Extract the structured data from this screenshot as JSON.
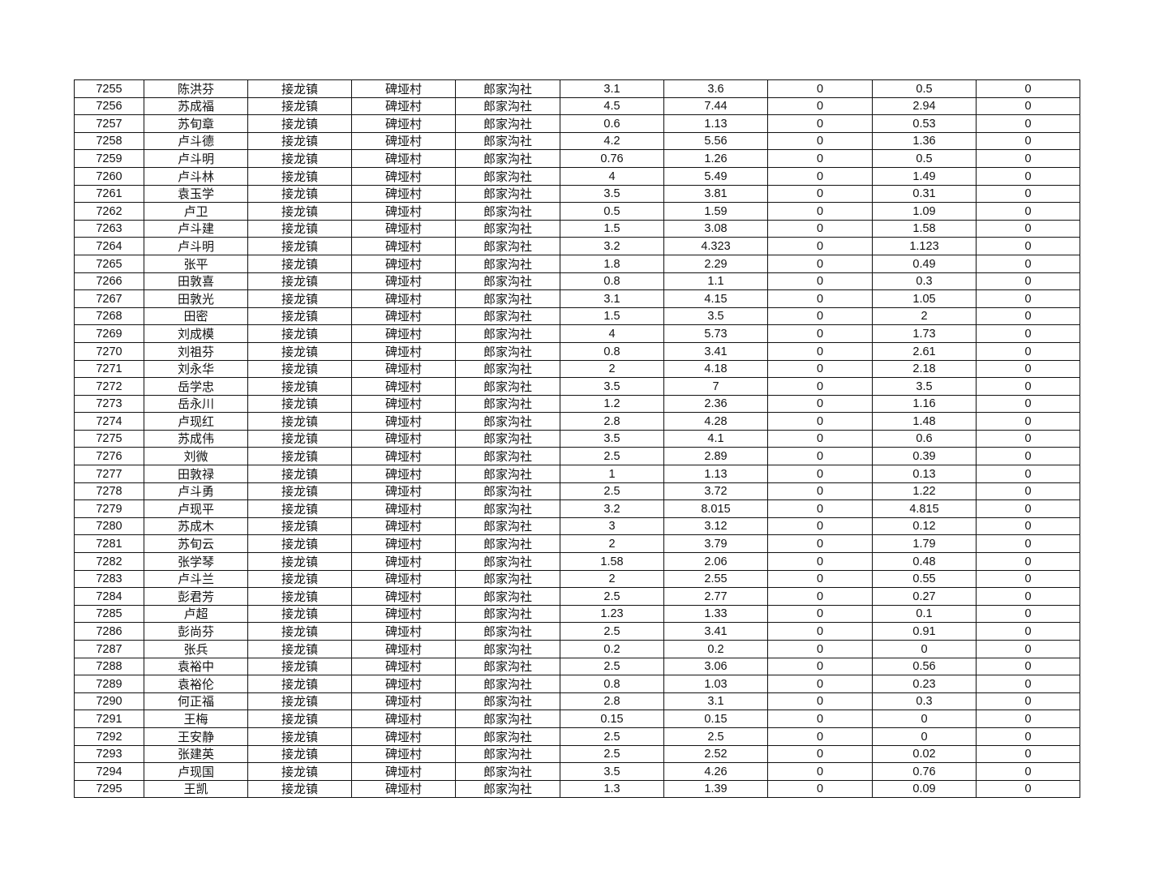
{
  "table": {
    "rows": [
      [
        "7255",
        "陈洪芬",
        "接龙镇",
        "碑垭村",
        "郎家沟社",
        "3.1",
        "3.6",
        "0",
        "0.5",
        "0"
      ],
      [
        "7256",
        "苏成福",
        "接龙镇",
        "碑垭村",
        "郎家沟社",
        "4.5",
        "7.44",
        "0",
        "2.94",
        "0"
      ],
      [
        "7257",
        "苏旬章",
        "接龙镇",
        "碑垭村",
        "郎家沟社",
        "0.6",
        "1.13",
        "0",
        "0.53",
        "0"
      ],
      [
        "7258",
        "卢斗德",
        "接龙镇",
        "碑垭村",
        "郎家沟社",
        "4.2",
        "5.56",
        "0",
        "1.36",
        "0"
      ],
      [
        "7259",
        "卢斗明",
        "接龙镇",
        "碑垭村",
        "郎家沟社",
        "0.76",
        "1.26",
        "0",
        "0.5",
        "0"
      ],
      [
        "7260",
        "卢斗林",
        "接龙镇",
        "碑垭村",
        "郎家沟社",
        "4",
        "5.49",
        "0",
        "1.49",
        "0"
      ],
      [
        "7261",
        "袁玉学",
        "接龙镇",
        "碑垭村",
        "郎家沟社",
        "3.5",
        "3.81",
        "0",
        "0.31",
        "0"
      ],
      [
        "7262",
        "卢卫",
        "接龙镇",
        "碑垭村",
        "郎家沟社",
        "0.5",
        "1.59",
        "0",
        "1.09",
        "0"
      ],
      [
        "7263",
        "卢斗建",
        "接龙镇",
        "碑垭村",
        "郎家沟社",
        "1.5",
        "3.08",
        "0",
        "1.58",
        "0"
      ],
      [
        "7264",
        "卢斗明",
        "接龙镇",
        "碑垭村",
        "郎家沟社",
        "3.2",
        "4.323",
        "0",
        "1.123",
        "0"
      ],
      [
        "7265",
        "张平",
        "接龙镇",
        "碑垭村",
        "郎家沟社",
        "1.8",
        "2.29",
        "0",
        "0.49",
        "0"
      ],
      [
        "7266",
        "田敦喜",
        "接龙镇",
        "碑垭村",
        "郎家沟社",
        "0.8",
        "1.1",
        "0",
        "0.3",
        "0"
      ],
      [
        "7267",
        "田敦光",
        "接龙镇",
        "碑垭村",
        "郎家沟社",
        "3.1",
        "4.15",
        "0",
        "1.05",
        "0"
      ],
      [
        "7268",
        "田密",
        "接龙镇",
        "碑垭村",
        "郎家沟社",
        "1.5",
        "3.5",
        "0",
        "2",
        "0"
      ],
      [
        "7269",
        "刘成模",
        "接龙镇",
        "碑垭村",
        "郎家沟社",
        "4",
        "5.73",
        "0",
        "1.73",
        "0"
      ],
      [
        "7270",
        "刘祖芬",
        "接龙镇",
        "碑垭村",
        "郎家沟社",
        "0.8",
        "3.41",
        "0",
        "2.61",
        "0"
      ],
      [
        "7271",
        "刘永华",
        "接龙镇",
        "碑垭村",
        "郎家沟社",
        "2",
        "4.18",
        "0",
        "2.18",
        "0"
      ],
      [
        "7272",
        "岳学忠",
        "接龙镇",
        "碑垭村",
        "郎家沟社",
        "3.5",
        "7",
        "0",
        "3.5",
        "0"
      ],
      [
        "7273",
        "岳永川",
        "接龙镇",
        "碑垭村",
        "郎家沟社",
        "1.2",
        "2.36",
        "0",
        "1.16",
        "0"
      ],
      [
        "7274",
        "卢现红",
        "接龙镇",
        "碑垭村",
        "郎家沟社",
        "2.8",
        "4.28",
        "0",
        "1.48",
        "0"
      ],
      [
        "7275",
        "苏成伟",
        "接龙镇",
        "碑垭村",
        "郎家沟社",
        "3.5",
        "4.1",
        "0",
        "0.6",
        "0"
      ],
      [
        "7276",
        "刘微",
        "接龙镇",
        "碑垭村",
        "郎家沟社",
        "2.5",
        "2.89",
        "0",
        "0.39",
        "0"
      ],
      [
        "7277",
        "田敦禄",
        "接龙镇",
        "碑垭村",
        "郎家沟社",
        "1",
        "1.13",
        "0",
        "0.13",
        "0"
      ],
      [
        "7278",
        "卢斗勇",
        "接龙镇",
        "碑垭村",
        "郎家沟社",
        "2.5",
        "3.72",
        "0",
        "1.22",
        "0"
      ],
      [
        "7279",
        "卢现平",
        "接龙镇",
        "碑垭村",
        "郎家沟社",
        "3.2",
        "8.015",
        "0",
        "4.815",
        "0"
      ],
      [
        "7280",
        "苏成木",
        "接龙镇",
        "碑垭村",
        "郎家沟社",
        "3",
        "3.12",
        "0",
        "0.12",
        "0"
      ],
      [
        "7281",
        "苏旬云",
        "接龙镇",
        "碑垭村",
        "郎家沟社",
        "2",
        "3.79",
        "0",
        "1.79",
        "0"
      ],
      [
        "7282",
        "张学琴",
        "接龙镇",
        "碑垭村",
        "郎家沟社",
        "1.58",
        "2.06",
        "0",
        "0.48",
        "0"
      ],
      [
        "7283",
        "卢斗兰",
        "接龙镇",
        "碑垭村",
        "郎家沟社",
        "2",
        "2.55",
        "0",
        "0.55",
        "0"
      ],
      [
        "7284",
        "彭君芳",
        "接龙镇",
        "碑垭村",
        "郎家沟社",
        "2.5",
        "2.77",
        "0",
        "0.27",
        "0"
      ],
      [
        "7285",
        "卢超",
        "接龙镇",
        "碑垭村",
        "郎家沟社",
        "1.23",
        "1.33",
        "0",
        "0.1",
        "0"
      ],
      [
        "7286",
        "彭尚芬",
        "接龙镇",
        "碑垭村",
        "郎家沟社",
        "2.5",
        "3.41",
        "0",
        "0.91",
        "0"
      ],
      [
        "7287",
        "张兵",
        "接龙镇",
        "碑垭村",
        "郎家沟社",
        "0.2",
        "0.2",
        "0",
        "0",
        "0"
      ],
      [
        "7288",
        "袁裕中",
        "接龙镇",
        "碑垭村",
        "郎家沟社",
        "2.5",
        "3.06",
        "0",
        "0.56",
        "0"
      ],
      [
        "7289",
        "袁裕伦",
        "接龙镇",
        "碑垭村",
        "郎家沟社",
        "0.8",
        "1.03",
        "0",
        "0.23",
        "0"
      ],
      [
        "7290",
        "何正福",
        "接龙镇",
        "碑垭村",
        "郎家沟社",
        "2.8",
        "3.1",
        "0",
        "0.3",
        "0"
      ],
      [
        "7291",
        "王梅",
        "接龙镇",
        "碑垭村",
        "郎家沟社",
        "0.15",
        "0.15",
        "0",
        "0",
        "0"
      ],
      [
        "7292",
        "王安静",
        "接龙镇",
        "碑垭村",
        "郎家沟社",
        "2.5",
        "2.5",
        "0",
        "0",
        "0"
      ],
      [
        "7293",
        "张建英",
        "接龙镇",
        "碑垭村",
        "郎家沟社",
        "2.5",
        "2.52",
        "0",
        "0.02",
        "0"
      ],
      [
        "7294",
        "卢现国",
        "接龙镇",
        "碑垭村",
        "郎家沟社",
        "3.5",
        "4.26",
        "0",
        "0.76",
        "0"
      ],
      [
        "7295",
        "王凯",
        "接龙镇",
        "碑垭村",
        "郎家沟社",
        "1.3",
        "1.39",
        "0",
        "0.09",
        "0"
      ]
    ]
  }
}
